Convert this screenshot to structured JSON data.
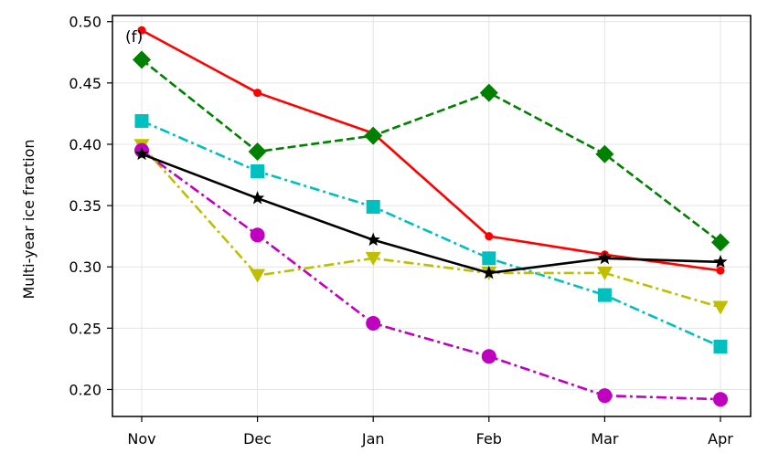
{
  "chart_data": {
    "type": "line",
    "panel_label": "(f)",
    "title": "",
    "xlabel": "",
    "ylabel": "Multi-year ice fraction",
    "categories": [
      "Nov",
      "Dec",
      "Jan",
      "Feb",
      "Mar",
      "Apr"
    ],
    "ylim": [
      0.178,
      0.505
    ],
    "yticks": [
      0.2,
      0.25,
      0.3,
      0.35,
      0.4,
      0.45,
      0.5
    ],
    "ytick_labels": [
      "0.20",
      "0.25",
      "0.30",
      "0.35",
      "0.40",
      "0.45",
      "0.50"
    ],
    "grid": true,
    "series": [
      {
        "color": "#ff0000",
        "linestyle": "solid",
        "marker": "circle-small",
        "values": [
          0.493,
          0.442,
          0.409,
          0.325,
          0.31,
          0.297
        ]
      },
      {
        "color": "#008000",
        "linestyle": "dashed",
        "marker": "diamond",
        "values": [
          0.469,
          0.394,
          0.407,
          0.442,
          0.392,
          0.32
        ]
      },
      {
        "color": "#00bfbf",
        "linestyle": "dashdot",
        "marker": "square",
        "values": [
          0.419,
          0.378,
          0.349,
          0.307,
          0.277,
          0.235
        ]
      },
      {
        "color": "#bfbf00",
        "linestyle": "dashdot",
        "marker": "triangle-down",
        "values": [
          0.399,
          0.293,
          0.307,
          0.295,
          0.295,
          0.267
        ]
      },
      {
        "color": "#bf00bf",
        "linestyle": "dashdot",
        "marker": "circle",
        "values": [
          0.395,
          0.326,
          0.254,
          0.227,
          0.195,
          0.192
        ]
      },
      {
        "color": "#000000",
        "linestyle": "solid",
        "marker": "star",
        "values": [
          0.392,
          0.356,
          0.322,
          0.295,
          0.307,
          0.304
        ]
      }
    ]
  }
}
